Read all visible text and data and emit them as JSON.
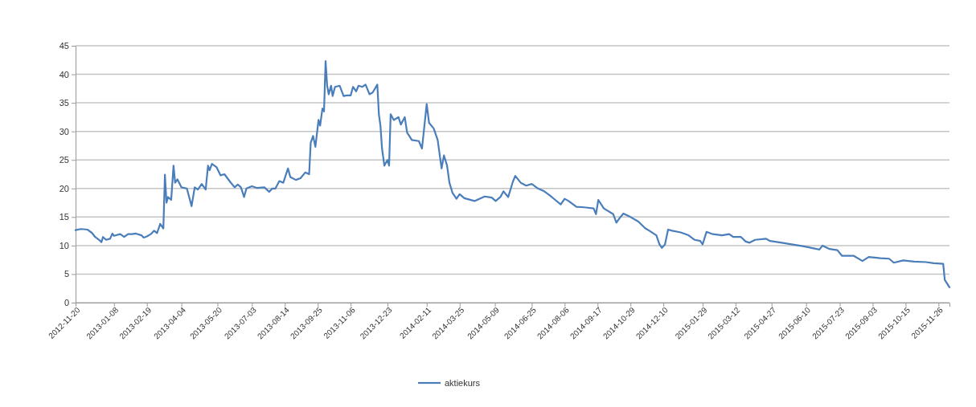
{
  "chart_data": {
    "type": "line",
    "xlim": [
      "2012-11-20",
      "2015-12-10"
    ],
    "xticks": [
      "2012-11-20",
      "2013-01-08",
      "2013-02-19",
      "2013-04-04",
      "2013-05-20",
      "2013-07-03",
      "2013-08-14",
      "2013-09-25",
      "2013-11-06",
      "2013-12-23",
      "2014-02-11",
      "2014-03-25",
      "2014-05-09",
      "2014-06-25",
      "2014-08-06",
      "2014-09-17",
      "2014-10-29",
      "2014-12-10",
      "2015-01-29",
      "2015-03-12",
      "2015-04-27",
      "2015-06-10",
      "2015-07-23",
      "2015-09-03",
      "2015-10-15",
      "2015-11-26"
    ],
    "ylim": [
      0,
      45
    ],
    "yticks": [
      0,
      5,
      10,
      15,
      20,
      25,
      30,
      35,
      40,
      45
    ],
    "grid": "y",
    "legend": "bottom",
    "x": [
      "2012-11-20",
      "2012-11-27",
      "2012-12-05",
      "2012-12-11",
      "2012-12-15",
      "2012-12-20",
      "2012-12-23",
      "2012-12-25",
      "2012-12-29",
      "2013-01-03",
      "2013-01-06",
      "2013-01-08",
      "2013-01-16",
      "2013-01-21",
      "2013-01-26",
      "2013-01-31",
      "2013-02-05",
      "2013-02-12",
      "2013-02-15",
      "2013-02-19",
      "2013-02-24",
      "2013-02-28",
      "2013-03-04",
      "2013-03-08",
      "2013-03-12",
      "2013-03-14",
      "2013-03-16",
      "2013-03-18",
      "2013-03-22",
      "2013-03-25",
      "2013-03-27",
      "2013-03-30",
      "2013-04-04",
      "2013-04-11",
      "2013-04-17",
      "2013-04-21",
      "2013-04-25",
      "2013-04-30",
      "2013-05-05",
      "2013-05-08",
      "2013-05-10",
      "2013-05-13",
      "2013-05-19",
      "2013-05-24",
      "2013-05-29",
      "2013-06-05",
      "2013-06-11",
      "2013-06-15",
      "2013-06-19",
      "2013-06-23",
      "2013-06-26",
      "2013-07-03",
      "2013-07-09",
      "2013-07-19",
      "2013-07-25",
      "2013-07-29",
      "2013-08-02",
      "2013-08-07",
      "2013-08-12",
      "2013-08-18",
      "2013-08-21",
      "2013-08-28",
      "2013-09-03",
      "2013-09-09",
      "2013-09-14",
      "2013-09-16",
      "2013-09-19",
      "2013-09-22",
      "2013-09-26",
      "2013-09-28",
      "2013-10-01",
      "2013-10-03",
      "2013-10-05",
      "2013-10-07",
      "2013-10-09",
      "2013-10-12",
      "2013-10-14",
      "2013-10-17",
      "2013-10-23",
      "2013-10-28",
      "2013-11-01",
      "2013-11-06",
      "2013-11-09",
      "2013-11-13",
      "2013-11-16",
      "2013-11-21",
      "2013-11-25",
      "2013-11-30",
      "2013-12-04",
      "2013-12-10",
      "2013-12-12",
      "2013-12-14",
      "2013-12-16",
      "2013-12-19",
      "2013-12-23",
      "2013-12-25",
      "2013-12-27",
      "2013-12-31",
      "2014-01-06",
      "2014-01-09",
      "2014-01-14",
      "2014-01-17",
      "2014-01-23",
      "2014-02-01",
      "2014-02-05",
      "2014-02-11",
      "2014-02-14",
      "2014-02-20",
      "2014-02-25",
      "2014-03-02",
      "2014-03-05",
      "2014-03-09",
      "2014-03-12",
      "2014-03-16",
      "2014-03-21",
      "2014-03-25",
      "2014-03-31",
      "2014-04-13",
      "2014-04-26",
      "2014-05-05",
      "2014-05-10",
      "2014-05-16",
      "2014-05-20",
      "2014-05-26",
      "2014-06-01",
      "2014-06-04",
      "2014-06-11",
      "2014-06-18",
      "2014-06-25",
      "2014-07-03",
      "2014-07-11",
      "2014-07-18",
      "2014-07-25",
      "2014-08-01",
      "2014-08-06",
      "2014-08-11",
      "2014-08-21",
      "2014-08-31",
      "2014-09-12",
      "2014-09-15",
      "2014-09-18",
      "2014-09-25",
      "2014-10-07",
      "2014-10-11",
      "2014-10-15",
      "2014-10-20",
      "2014-10-29",
      "2014-11-08",
      "2014-11-17",
      "2014-11-22",
      "2014-12-01",
      "2014-12-05",
      "2014-12-08",
      "2014-12-12",
      "2014-12-16",
      "2014-12-21",
      "2015-01-01",
      "2015-01-11",
      "2015-01-19",
      "2015-01-26",
      "2015-01-29",
      "2015-02-03",
      "2015-02-11",
      "2015-02-23",
      "2015-03-04",
      "2015-03-09",
      "2015-03-19",
      "2015-03-25",
      "2015-03-30",
      "2015-04-06",
      "2015-04-20",
      "2015-04-25",
      "2015-05-10",
      "2015-06-01",
      "2015-06-10",
      "2015-06-27",
      "2015-07-01",
      "2015-07-10",
      "2015-07-20",
      "2015-07-26",
      "2015-08-10",
      "2015-08-21",
      "2015-08-29",
      "2015-09-13",
      "2015-09-24",
      "2015-09-30",
      "2015-10-12",
      "2015-10-26",
      "2015-11-10",
      "2015-11-20",
      "2015-12-02",
      "2015-12-04",
      "2015-12-10"
    ],
    "series": [
      {
        "name": "aktiekurs",
        "color": "#4a7ebb",
        "values": [
          12.7,
          12.9,
          12.8,
          12.2,
          11.5,
          11.0,
          10.6,
          11.5,
          11.0,
          11.2,
          12.1,
          11.7,
          12.0,
          11.5,
          12.0,
          12.0,
          12.1,
          11.8,
          11.4,
          11.6,
          12.0,
          12.6,
          12.2,
          13.8,
          13.0,
          22.4,
          17.5,
          18.5,
          18.0,
          24.0,
          21.0,
          21.6,
          20.2,
          20.0,
          16.9,
          20.2,
          19.8,
          20.8,
          19.8,
          24.0,
          23.2,
          24.3,
          23.7,
          22.3,
          22.5,
          21.2,
          20.2,
          20.7,
          20.2,
          18.5,
          20.0,
          20.4,
          20.1,
          20.2,
          19.4,
          20.0,
          20.0,
          21.3,
          21.0,
          23.5,
          22.0,
          21.5,
          21.8,
          22.8,
          22.5,
          28.0,
          29.2,
          27.3,
          32.0,
          31.0,
          34.0,
          33.5,
          42.3,
          38.0,
          36.5,
          38.0,
          36.2,
          37.8,
          38.0,
          36.2,
          36.3,
          36.3,
          37.8,
          37.0,
          38.0,
          37.8,
          38.2,
          36.5,
          36.8,
          38.2,
          33.0,
          31.0,
          27.0,
          24.0,
          25.0,
          24.0,
          33.0,
          32.0,
          32.5,
          31.2,
          32.5,
          29.8,
          28.5,
          28.3,
          27.0,
          34.8,
          31.5,
          30.5,
          28.5,
          23.5,
          25.8,
          24.0,
          21.0,
          19.2,
          18.2,
          19.0,
          18.3,
          17.8,
          18.6,
          18.4,
          17.8,
          18.5,
          19.5,
          18.5,
          21.2,
          22.2,
          21.0,
          20.5,
          20.8,
          20.0,
          19.5,
          18.8,
          18.0,
          17.2,
          18.2,
          17.8,
          16.8,
          16.7,
          16.5,
          15.5,
          18.0,
          16.5,
          15.5,
          14.0,
          14.8,
          15.6,
          15.0,
          14.2,
          13.0,
          12.6,
          11.8,
          10.2,
          9.6,
          10.2,
          12.8,
          12.6,
          12.3,
          11.8,
          11.0,
          10.8,
          10.2,
          12.4,
          12.0,
          11.8,
          12.0,
          11.5,
          11.5,
          10.7,
          10.5,
          11.0,
          11.2,
          10.8,
          10.5,
          10.0,
          9.8,
          9.3,
          10.0,
          9.4,
          9.2,
          8.2,
          8.2,
          7.3,
          8.0,
          7.8,
          7.7,
          7.0,
          7.4,
          7.2,
          7.1,
          6.9,
          6.8,
          4.0,
          2.7
        ]
      }
    ]
  }
}
